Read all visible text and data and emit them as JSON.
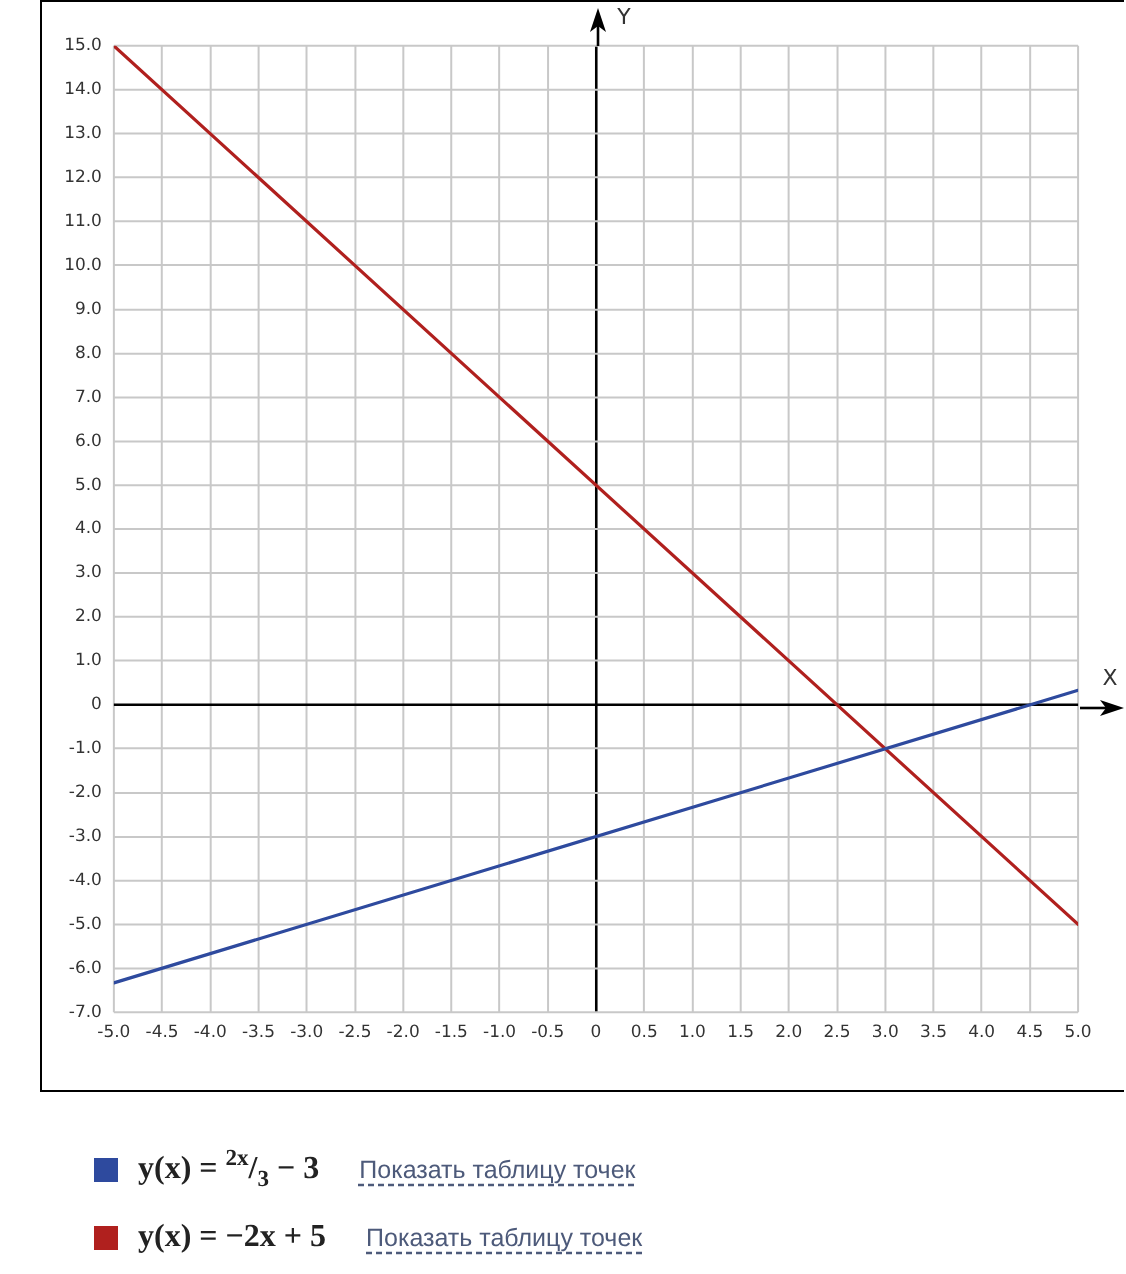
{
  "chart_data": {
    "type": "line",
    "x": [
      -5,
      5
    ],
    "series": [
      {
        "name": "y(x) = $^{2x}$/$_{3}$ − 3",
        "color": "#2e4a9e",
        "values": [
          -6.33,
          0.33
        ]
      },
      {
        "name": "y(x) = −2x + 5",
        "color": "#b0201e",
        "values": [
          15,
          -5
        ]
      }
    ],
    "xlabel": "X",
    "ylabel": "Y",
    "xlim": [
      -5,
      5
    ],
    "ylim": [
      -7,
      15
    ],
    "xticks": [
      {
        "value": -5,
        "label": "-5.0"
      },
      {
        "value": -4.5,
        "label": "-4.5"
      },
      {
        "value": -4,
        "label": "-4.0"
      },
      {
        "value": -3.5,
        "label": "-3.5"
      },
      {
        "value": -3,
        "label": "-3.0"
      },
      {
        "value": -2.5,
        "label": "-2.5"
      },
      {
        "value": -2,
        "label": "-2.0"
      },
      {
        "value": -1.5,
        "label": "-1.5"
      },
      {
        "value": -1,
        "label": "-1.0"
      },
      {
        "value": -0.5,
        "label": "-0.5"
      },
      0,
      0.5,
      {
        "value": 1,
        "label": "1.0"
      },
      1.5,
      {
        "value": 2,
        "label": "2.0"
      },
      2.5,
      {
        "value": 3,
        "label": "3.0"
      },
      3.5,
      {
        "value": 4,
        "label": "4.0"
      },
      4.5,
      {
        "value": 5,
        "label": "5.0"
      }
    ],
    "yticks": [
      {
        "value": -7,
        "label": "-7.0"
      },
      {
        "value": -6,
        "label": "-6.0"
      },
      {
        "value": -5,
        "label": "-5.0"
      },
      {
        "value": -4,
        "label": "-4.0"
      },
      {
        "value": -3,
        "label": "-3.0"
      },
      {
        "value": -2,
        "label": "-2.0"
      },
      {
        "value": -1,
        "label": "-1.0"
      },
      0,
      {
        "value": 1,
        "label": "1.0"
      },
      {
        "value": 2,
        "label": "2.0"
      },
      {
        "value": 3,
        "label": "3.0"
      },
      {
        "value": 4,
        "label": "4.0"
      },
      {
        "value": 5,
        "label": "5.0"
      },
      {
        "value": 6,
        "label": "6.0"
      },
      {
        "value": 7,
        "label": "7.0"
      },
      {
        "value": 8,
        "label": "8.0"
      },
      {
        "value": 9,
        "label": "9.0"
      },
      {
        "value": 10,
        "label": "10.0"
      },
      {
        "value": 11,
        "label": "11.0"
      },
      {
        "value": 12,
        "label": "12.0"
      },
      {
        "value": 13,
        "label": "13.0"
      },
      {
        "value": 14,
        "label": "14.0"
      },
      {
        "value": 15,
        "label": "15.0"
      }
    ],
    "grid": true,
    "legend": "bottom",
    "annotations": [
      "Показать таблицу точек",
      "Показать таблицу точек"
    ]
  }
}
